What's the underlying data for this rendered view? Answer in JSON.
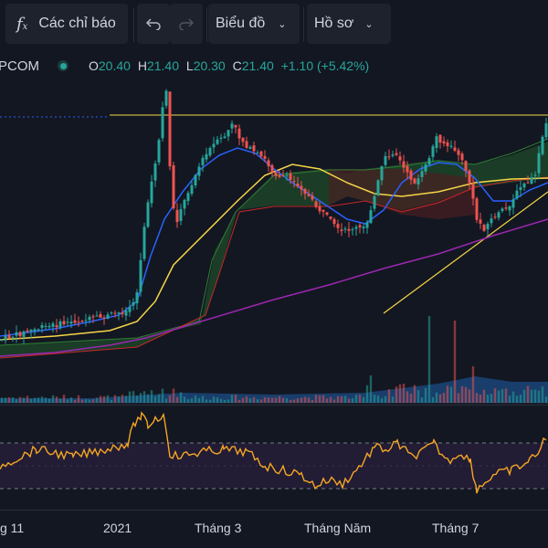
{
  "toolbar": {
    "indicators_label": "Các chỉ báo",
    "indicators_icon": "fx-icon",
    "undo_icon": "undo-icon",
    "redo_icon": "redo-icon",
    "chart_label": "Biểu đồ",
    "profile_label": "Hồ sơ"
  },
  "symbol": {
    "name": "PCOM",
    "open_label": "O",
    "open": "20.40",
    "high_label": "H",
    "high": "21.40",
    "low_label": "L",
    "low": "20.30",
    "close_label": "C",
    "close": "21.40",
    "change": "+1.10 (+5.42%)"
  },
  "xaxis": {
    "labels": [
      "g 11",
      "2021",
      "Tháng 3",
      "Tháng Năm",
      "Tháng 7"
    ]
  },
  "colors": {
    "up": "#26a69a",
    "down": "#ef5350",
    "ma_blue": "#2962ff",
    "ma_yellow": "#f5d547",
    "ma_purple": "#9c27b0",
    "rsi": "#f5a623",
    "cloud_green": "#1f5a2a",
    "cloud_red": "#5a1f22"
  }
}
